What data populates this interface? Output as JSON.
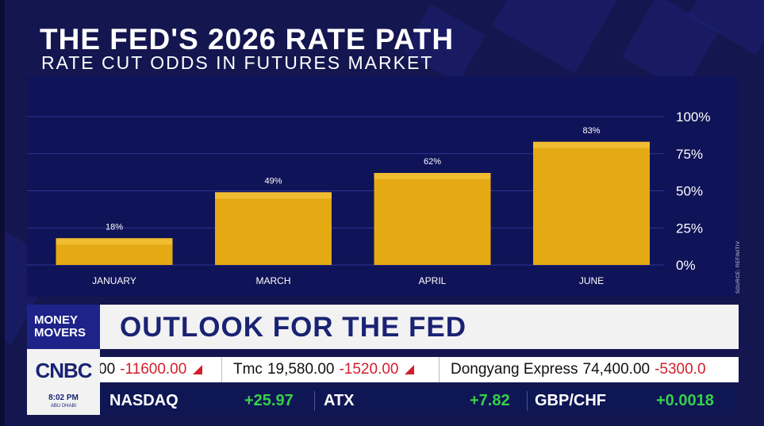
{
  "title": "THE FED'S 2026 RATE PATH",
  "subtitle": "RATE CUT ODDS IN FUTURES MARKET",
  "source": "SOURCE: REFINITIV",
  "colors": {
    "background": "#14164f",
    "panel": "#0f1357",
    "bar": "#e5a914",
    "bar_top": "#f0bd30",
    "grid": "#2c3494",
    "positive": "#35d04a",
    "negative": "#d21f2b"
  },
  "chart_data": {
    "type": "bar",
    "title": "THE FED'S 2026 RATE PATH",
    "subtitle": "RATE CUT ODDS IN FUTURES MARKET",
    "categories": [
      "JANUARY",
      "MARCH",
      "APRIL",
      "JUNE"
    ],
    "values": [
      18,
      49,
      62,
      83
    ],
    "value_labels": [
      "18%",
      "49%",
      "62%",
      "83%"
    ],
    "ylim": [
      0,
      100
    ],
    "yticks": [
      0,
      25,
      50,
      75,
      100
    ],
    "ytick_labels": [
      "0%",
      "25%",
      "50%",
      "75%",
      "100%"
    ],
    "y_axis_side": "right",
    "grid": true,
    "xlabel": "",
    "ylabel": ""
  },
  "lower_third": {
    "show_name_line1": "MONEY",
    "show_name_line2": "MOVERS",
    "headline": "OUTLOOK FOR THE FED"
  },
  "logo": {
    "text": "CNBC",
    "time": "8:02 PM",
    "location": "ABU DHABI"
  },
  "ticker_top": [
    {
      "name": "",
      "price": "00",
      "change": "-11600.00"
    },
    {
      "name": "Tmc",
      "price": "19,580.00",
      "change": "-1520.00"
    },
    {
      "name": "Dongyang Express",
      "price": "74,400.00",
      "change": "-5300.0"
    }
  ],
  "ticker_bottom": [
    {
      "name": "NASDAQ",
      "value": "+25.97"
    },
    {
      "name": "ATX",
      "value": "+7.82"
    },
    {
      "name": "GBP/CHF",
      "value": "+0.0018"
    }
  ]
}
